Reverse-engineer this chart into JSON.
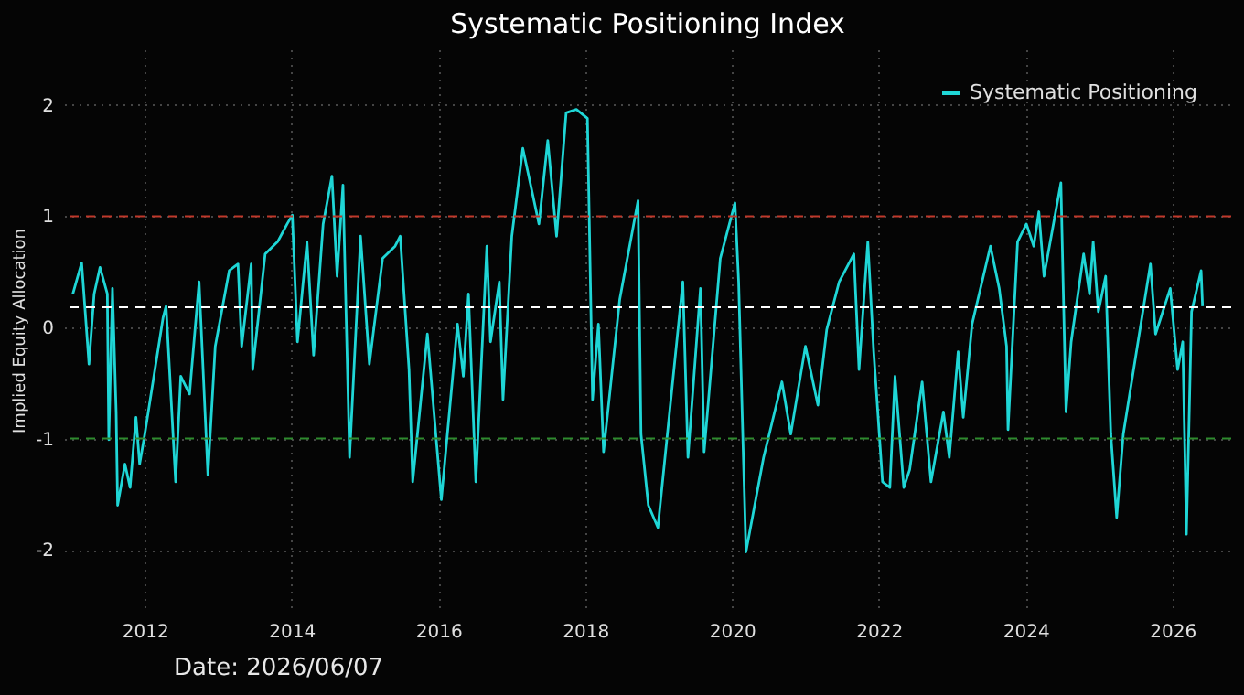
{
  "chart_data": {
    "type": "line",
    "title": "Systematic Positioning Index",
    "ylabel": "Implied Equity Allocation",
    "annotations": [
      "Date: 2026/06/07"
    ],
    "x": [
      2011.02,
      2011.14,
      2011.24,
      2011.31,
      2011.39,
      2011.49,
      2011.51,
      2011.56,
      2011.61,
      2011.63,
      2011.73,
      2011.8,
      2011.88,
      2011.93,
      2012.0,
      2012.25,
      2012.29,
      2012.42,
      2012.49,
      2012.61,
      2012.74,
      2012.86,
      2012.96,
      2013.15,
      2013.27,
      2013.32,
      2013.45,
      2013.47,
      2013.64,
      2013.81,
      2013.94,
      2014.01,
      2014.08,
      2014.21,
      2014.3,
      2014.43,
      2014.55,
      2014.62,
      2014.7,
      2014.79,
      2014.94,
      2015.06,
      2015.24,
      2015.41,
      2015.48,
      2015.6,
      2015.65,
      2015.85,
      2016.04,
      2016.26,
      2016.34,
      2016.41,
      2016.51,
      2016.66,
      2016.71,
      2016.83,
      2016.88,
      2017.0,
      2017.15,
      2017.37,
      2017.49,
      2017.61,
      2017.74,
      2017.88,
      2018.03,
      2018.1,
      2018.18,
      2018.25,
      2018.47,
      2018.72,
      2018.76,
      2018.86,
      2018.99,
      2019.33,
      2019.4,
      2019.57,
      2019.62,
      2019.84,
      2020.04,
      2020.09,
      2020.19,
      2020.43,
      2020.68,
      2020.8,
      2021.0,
      2021.17,
      2021.29,
      2021.46,
      2021.66,
      2021.73,
      2021.85,
      2021.93,
      2022.05,
      2022.15,
      2022.22,
      2022.34,
      2022.42,
      2022.59,
      2022.71,
      2022.88,
      2022.96,
      2023.08,
      2023.15,
      2023.27,
      2023.52,
      2023.64,
      2023.74,
      2023.76,
      2023.89,
      2024.01,
      2024.11,
      2024.18,
      2024.25,
      2024.48,
      2024.55,
      2024.62,
      2024.79,
      2024.87,
      2024.92,
      2024.99,
      2025.09,
      2025.16,
      2025.24,
      2025.33,
      2025.7,
      2025.77,
      2025.97,
      2026.07,
      2026.14,
      2026.19,
      2026.26,
      2026.39,
      2026.41
    ],
    "series": [
      {
        "name": "Systematic Positioning",
        "color": "#1fd6d6",
        "values": [
          0.3,
          0.58,
          -0.33,
          0.3,
          0.54,
          0.3,
          -1.01,
          0.35,
          -0.76,
          -1.6,
          -1.23,
          -1.44,
          -0.81,
          -1.23,
          -0.96,
          0.09,
          0.19,
          -1.39,
          -0.44,
          -0.6,
          0.41,
          -1.33,
          -0.17,
          0.51,
          0.57,
          -0.17,
          0.57,
          -0.38,
          0.66,
          0.77,
          0.93,
          1.01,
          -0.13,
          0.77,
          -0.25,
          0.93,
          1.36,
          0.46,
          1.28,
          -1.17,
          0.82,
          -0.33,
          0.62,
          0.73,
          0.82,
          -0.38,
          -1.39,
          -0.06,
          -1.55,
          0.03,
          -0.44,
          0.3,
          -1.39,
          0.73,
          -0.13,
          0.41,
          -0.65,
          0.82,
          1.61,
          0.93,
          1.68,
          0.82,
          1.93,
          1.96,
          1.88,
          -0.65,
          0.03,
          -1.12,
          0.25,
          1.14,
          -0.96,
          -1.6,
          -1.8,
          0.41,
          -1.17,
          0.35,
          -1.12,
          0.62,
          1.12,
          0.41,
          -2.02,
          -1.17,
          -0.49,
          -0.96,
          -0.17,
          -0.7,
          -0.02,
          0.41,
          0.66,
          -0.38,
          0.77,
          -0.22,
          -1.39,
          -1.44,
          -0.44,
          -1.44,
          -1.28,
          -0.49,
          -1.39,
          -0.76,
          -1.17,
          -0.22,
          -0.81,
          0.03,
          0.73,
          0.35,
          -0.17,
          -0.92,
          0.77,
          0.93,
          0.73,
          1.04,
          0.46,
          1.3,
          -0.76,
          -0.13,
          0.66,
          0.3,
          0.77,
          0.14,
          0.46,
          -0.96,
          -1.71,
          -0.96,
          0.57,
          -0.06,
          0.35,
          -0.38,
          -0.13,
          -1.86,
          0.14,
          0.51,
          0.19
        ]
      }
    ],
    "xlim": [
      2010.9,
      2026.8
    ],
    "ylim": [
      -2.55,
      2.5
    ],
    "xticks": [
      2012,
      2014,
      2016,
      2018,
      2020,
      2022,
      2024,
      2026
    ],
    "yticks": [
      -2,
      -1,
      0,
      1,
      2
    ],
    "grid": true,
    "legend": "top right",
    "ref_lines": [
      {
        "axis": "y",
        "value": 1,
        "color": "#c0392b",
        "line_style": "dashed"
      },
      {
        "axis": "y",
        "value": -1,
        "color": "#2e8b2e",
        "line_style": "dashed"
      },
      {
        "axis": "y",
        "value": 0.18,
        "color": "#ffffff",
        "line_style": "dashed"
      }
    ]
  }
}
